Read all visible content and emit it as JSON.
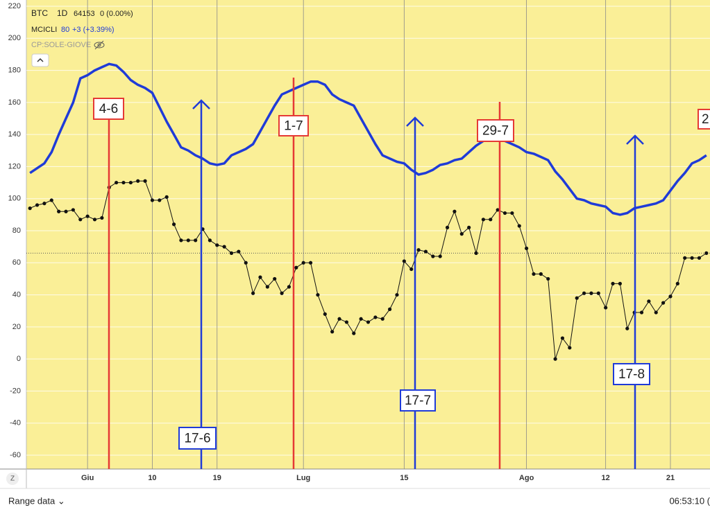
{
  "header": {
    "interval": "1D",
    "btc_price": "64153",
    "btc_change": "0 (0.00%)",
    "ind_value": "80",
    "ind_change": "+3 (+3.39%)",
    "overlay": "CP:SOLE-GIOVE",
    "zoom": "Z"
  },
  "footer": {
    "range": "Range data ⌄",
    "time": "06:53:10 ("
  },
  "chart_data": {
    "type": "line",
    "categories": [
      null,
      null,
      null,
      null,
      null,
      null,
      null,
      null,
      "Giu",
      null,
      null,
      null,
      null,
      null,
      null,
      null,
      null,
      "10",
      null,
      null,
      null,
      null,
      null,
      null,
      null,
      null,
      "19",
      null,
      null,
      null,
      null,
      null,
      null,
      null,
      null,
      null,
      null,
      null,
      "Lug",
      null,
      null,
      null,
      null,
      null,
      null,
      null,
      null,
      null,
      null,
      null,
      null,
      null,
      "15",
      null,
      null,
      null,
      null,
      null,
      null,
      null,
      null,
      null,
      null,
      null,
      null,
      null,
      null,
      null,
      null,
      "Ago",
      null,
      null,
      null,
      null,
      null,
      null,
      null,
      null,
      null,
      null,
      "12",
      null,
      null,
      null,
      null,
      null,
      null,
      null,
      null,
      "21",
      null,
      null,
      null,
      null,
      null
    ],
    "series": [
      {
        "name": "MCICLI",
        "color": "#1f3bd8",
        "values": [
          116,
          119,
          122,
          129,
          140,
          150,
          160,
          175,
          177,
          180,
          182,
          184,
          183,
          179,
          174,
          171,
          169,
          166,
          157,
          148,
          140,
          132,
          130,
          127,
          125,
          122,
          121,
          122,
          127,
          129,
          131,
          134,
          142,
          150,
          158,
          165,
          167,
          169,
          171,
          173,
          173,
          171,
          165,
          162,
          160,
          158,
          150,
          142,
          134,
          127,
          125,
          123,
          122,
          118,
          115,
          116,
          118,
          121,
          122,
          124,
          125,
          129,
          133,
          136,
          139,
          138,
          136,
          134,
          132,
          129,
          128,
          126,
          124,
          117,
          112,
          106,
          100,
          99,
          97,
          96,
          95,
          91,
          90,
          91,
          94,
          95,
          96,
          97,
          99,
          105,
          111,
          116,
          122,
          124,
          127
        ]
      },
      {
        "name": "BTC",
        "color": "#111111",
        "values": [
          94,
          96,
          97,
          99,
          92,
          92,
          93,
          87,
          89,
          87,
          88,
          107,
          110,
          110,
          110,
          111,
          111,
          99,
          99,
          101,
          84,
          74,
          74,
          74,
          81,
          74,
          71,
          70,
          66,
          67,
          60,
          41,
          51,
          45,
          50,
          41,
          45,
          57,
          60,
          60,
          40,
          28,
          17,
          25,
          23,
          16,
          25,
          23,
          26,
          25,
          31,
          40,
          61,
          56,
          68,
          67,
          64,
          64,
          82,
          92,
          78,
          82,
          66,
          87,
          87,
          93,
          91,
          91,
          83,
          69,
          53,
          53,
          50,
          0,
          13,
          7,
          38,
          41,
          41,
          41,
          32,
          47,
          47,
          19,
          29,
          29,
          36,
          29,
          35,
          39,
          47,
          63,
          63,
          63,
          66
        ]
      }
    ],
    "reference_line": 66,
    "ylim": [
      -60,
      220
    ],
    "yticks": [
      -60,
      -40,
      -20,
      0,
      20,
      40,
      60,
      80,
      100,
      120,
      140,
      160,
      180,
      200,
      220
    ],
    "grid": true,
    "annotations": [
      {
        "text": "4-6",
        "color": "#e53935"
      },
      {
        "text": "1-7",
        "color": "#e53935"
      },
      {
        "text": "29-7",
        "color": "#e53935"
      },
      {
        "text": "2",
        "color": "#e53935"
      },
      {
        "text": "17-6",
        "color": "#1f3bd8"
      },
      {
        "text": "17-7",
        "color": "#1f3bd8"
      },
      {
        "text": "17-8",
        "color": "#1f3bd8"
      }
    ]
  }
}
